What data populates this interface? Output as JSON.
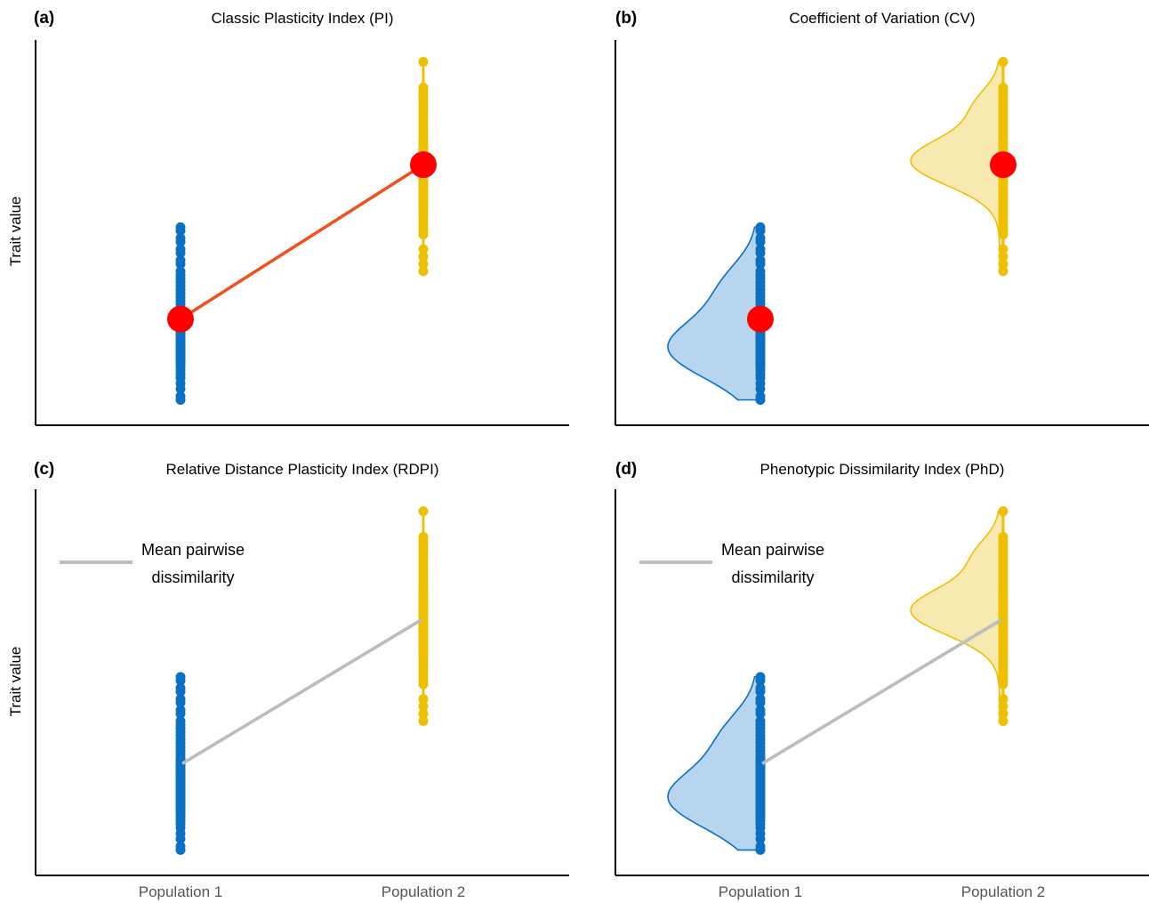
{
  "colors": {
    "population_1": "#0a70c2",
    "population_1_fill": "#b7d5ef",
    "population_2": "#eec000",
    "population_2_fill": "#f8e9b0",
    "mean_marker": "#ff0000",
    "pi_line": "#f0501e",
    "dissimilarity_line": "#bdbdbd",
    "axis": "#000000"
  },
  "chart_data": [
    {
      "type": "scatter",
      "letter": "(a)",
      "title": "Classic Plasticity Index (PI)",
      "ylabel": "Trait value",
      "xlabel": "",
      "x_tick_labels": [],
      "ylim": [
        0,
        10
      ],
      "categories": [
        "Population 1",
        "Population 2"
      ],
      "series": [
        {
          "name": "Population 1",
          "color": "population_1",
          "values": [
            5.1,
            5.0,
            4.8,
            4.7,
            4.5,
            4.4,
            4.2,
            4.1,
            3.9,
            3.8,
            3.7,
            3.6,
            3.5,
            3.4,
            3.3,
            3.2,
            3.1,
            3.0,
            2.9,
            2.85,
            2.8,
            2.75,
            2.7,
            2.65,
            2.6,
            2.55,
            2.5,
            2.45,
            2.4,
            2.35,
            2.3,
            2.25,
            2.2,
            2.15,
            2.1,
            2.05,
            2.0,
            1.95,
            1.9,
            1.85,
            1.8,
            1.75,
            1.7,
            1.65,
            1.6,
            1.55,
            1.5,
            1.45,
            1.4,
            1.35,
            1.3,
            1.2,
            1.1,
            1.0,
            0.85,
            0.7,
            0.5,
            0.4
          ]
        },
        {
          "name": "Population 2",
          "color": "population_2",
          "values": [
            9.6,
            8.9,
            8.8,
            8.7,
            8.6,
            8.5,
            8.4,
            8.3,
            8.2,
            8.1,
            8.0,
            7.9,
            7.8,
            7.7,
            7.6,
            7.5,
            7.4,
            7.35,
            7.3,
            7.25,
            7.2,
            7.15,
            7.1,
            7.05,
            7.0,
            6.95,
            6.9,
            6.85,
            6.8,
            6.75,
            6.7,
            6.65,
            6.6,
            6.55,
            6.5,
            6.45,
            6.4,
            6.35,
            6.3,
            6.25,
            6.2,
            6.15,
            6.1,
            6.05,
            6.0,
            5.95,
            5.9,
            5.85,
            5.8,
            5.7,
            5.6,
            5.5,
            5.4,
            5.3,
            5.2,
            5.1,
            5.0,
            4.9,
            4.5,
            4.3,
            4.1,
            3.9
          ]
        }
      ],
      "means": [
        2.6,
        6.8
      ],
      "show_means": true,
      "show_mean_line": true,
      "show_density": false,
      "show_dissimilarity_line": false
    },
    {
      "type": "scatter",
      "letter": "(b)",
      "title": "Coefficient of Variation (CV)",
      "ylabel": "",
      "xlabel": "",
      "x_tick_labels": [],
      "ylim": [
        0,
        10
      ],
      "categories": [
        "Population 1",
        "Population 2"
      ],
      "series": [
        {
          "name": "Population 1",
          "color": "population_1",
          "values": [
            5.1,
            5.0,
            4.8,
            4.7,
            4.5,
            4.4,
            4.2,
            4.1,
            3.9,
            3.8,
            3.7,
            3.6,
            3.5,
            3.4,
            3.3,
            3.2,
            3.1,
            3.0,
            2.9,
            2.85,
            2.8,
            2.75,
            2.7,
            2.65,
            2.6,
            2.55,
            2.5,
            2.45,
            2.4,
            2.35,
            2.3,
            2.25,
            2.2,
            2.15,
            2.1,
            2.05,
            2.0,
            1.95,
            1.9,
            1.85,
            1.8,
            1.75,
            1.7,
            1.65,
            1.6,
            1.55,
            1.5,
            1.45,
            1.4,
            1.35,
            1.3,
            1.2,
            1.1,
            1.0,
            0.85,
            0.7,
            0.5,
            0.4
          ]
        },
        {
          "name": "Population 2",
          "color": "population_2",
          "values": [
            9.6,
            8.9,
            8.8,
            8.7,
            8.6,
            8.5,
            8.4,
            8.3,
            8.2,
            8.1,
            8.0,
            7.9,
            7.8,
            7.7,
            7.6,
            7.5,
            7.4,
            7.35,
            7.3,
            7.25,
            7.2,
            7.15,
            7.1,
            7.05,
            7.0,
            6.95,
            6.9,
            6.85,
            6.8,
            6.75,
            6.7,
            6.65,
            6.6,
            6.55,
            6.5,
            6.45,
            6.4,
            6.35,
            6.3,
            6.25,
            6.2,
            6.15,
            6.1,
            6.05,
            6.0,
            5.95,
            5.9,
            5.85,
            5.8,
            5.7,
            5.6,
            5.5,
            5.4,
            5.3,
            5.2,
            5.1,
            5.0,
            4.9,
            4.5,
            4.3,
            4.1,
            3.9
          ]
        }
      ],
      "means": [
        2.6,
        6.8
      ],
      "show_means": true,
      "show_mean_line": false,
      "show_density": true,
      "show_dissimilarity_line": false
    },
    {
      "type": "scatter",
      "letter": "(c)",
      "title": "Relative Distance Plasticity Index (RDPI)",
      "ylabel": "Trait value",
      "xlabel": "",
      "x_tick_labels": [
        "Population 1",
        "Population 2"
      ],
      "ylim": [
        0,
        10
      ],
      "categories": [
        "Population 1",
        "Population 2"
      ],
      "series": [
        {
          "name": "Population 1",
          "color": "population_1",
          "values": [
            5.1,
            5.0,
            4.8,
            4.7,
            4.5,
            4.4,
            4.2,
            4.1,
            3.9,
            3.8,
            3.7,
            3.6,
            3.5,
            3.4,
            3.3,
            3.2,
            3.1,
            3.0,
            2.9,
            2.85,
            2.8,
            2.75,
            2.7,
            2.65,
            2.6,
            2.55,
            2.5,
            2.45,
            2.4,
            2.35,
            2.3,
            2.25,
            2.2,
            2.15,
            2.1,
            2.05,
            2.0,
            1.95,
            1.9,
            1.85,
            1.8,
            1.75,
            1.7,
            1.65,
            1.6,
            1.55,
            1.5,
            1.45,
            1.4,
            1.35,
            1.3,
            1.2,
            1.1,
            1.0,
            0.85,
            0.7,
            0.5,
            0.4
          ]
        },
        {
          "name": "Population 2",
          "color": "population_2",
          "values": [
            9.6,
            8.9,
            8.8,
            8.7,
            8.6,
            8.5,
            8.4,
            8.3,
            8.2,
            8.1,
            8.0,
            7.9,
            7.8,
            7.7,
            7.6,
            7.5,
            7.4,
            7.35,
            7.3,
            7.25,
            7.2,
            7.15,
            7.1,
            7.05,
            7.0,
            6.95,
            6.9,
            6.85,
            6.8,
            6.75,
            6.7,
            6.65,
            6.6,
            6.55,
            6.5,
            6.45,
            6.4,
            6.35,
            6.3,
            6.25,
            6.2,
            6.15,
            6.1,
            6.05,
            6.0,
            5.95,
            5.9,
            5.85,
            5.8,
            5.7,
            5.6,
            5.5,
            5.4,
            5.3,
            5.2,
            5.1,
            5.0,
            4.9,
            4.5,
            4.3,
            4.1,
            3.9
          ]
        }
      ],
      "means": [
        2.6,
        6.8
      ],
      "show_means": false,
      "show_mean_line": false,
      "show_density": false,
      "show_dissimilarity_line": true,
      "legend": {
        "label_line1": "Mean pairwise",
        "label_line2": "dissimilarity",
        "position": "top-left"
      }
    },
    {
      "type": "scatter",
      "letter": "(d)",
      "title": "Phenotypic Dissimilarity Index (PhD)",
      "ylabel": "",
      "xlabel": "",
      "x_tick_labels": [
        "Population 1",
        "Population 2"
      ],
      "ylim": [
        0,
        10
      ],
      "categories": [
        "Population 1",
        "Population 2"
      ],
      "series": [
        {
          "name": "Population 1",
          "color": "population_1",
          "values": [
            5.1,
            5.0,
            4.8,
            4.7,
            4.5,
            4.4,
            4.2,
            4.1,
            3.9,
            3.8,
            3.7,
            3.6,
            3.5,
            3.4,
            3.3,
            3.2,
            3.1,
            3.0,
            2.9,
            2.85,
            2.8,
            2.75,
            2.7,
            2.65,
            2.6,
            2.55,
            2.5,
            2.45,
            2.4,
            2.35,
            2.3,
            2.25,
            2.2,
            2.15,
            2.1,
            2.05,
            2.0,
            1.95,
            1.9,
            1.85,
            1.8,
            1.75,
            1.7,
            1.65,
            1.6,
            1.55,
            1.5,
            1.45,
            1.4,
            1.35,
            1.3,
            1.2,
            1.1,
            1.0,
            0.85,
            0.7,
            0.5,
            0.4
          ]
        },
        {
          "name": "Population 2",
          "color": "population_2",
          "values": [
            9.6,
            8.9,
            8.8,
            8.7,
            8.6,
            8.5,
            8.4,
            8.3,
            8.2,
            8.1,
            8.0,
            7.9,
            7.8,
            7.7,
            7.6,
            7.5,
            7.4,
            7.35,
            7.3,
            7.25,
            7.2,
            7.15,
            7.1,
            7.05,
            7.0,
            6.95,
            6.9,
            6.85,
            6.8,
            6.75,
            6.7,
            6.65,
            6.6,
            6.55,
            6.5,
            6.45,
            6.4,
            6.35,
            6.3,
            6.25,
            6.2,
            6.15,
            6.1,
            6.05,
            6.0,
            5.95,
            5.9,
            5.85,
            5.8,
            5.7,
            5.6,
            5.5,
            5.4,
            5.3,
            5.2,
            5.1,
            5.0,
            4.9,
            4.5,
            4.3,
            4.1,
            3.9
          ]
        }
      ],
      "means": [
        2.6,
        6.8
      ],
      "show_means": false,
      "show_mean_line": false,
      "show_density": true,
      "show_dissimilarity_line": true,
      "legend": {
        "label_line1": "Mean pairwise",
        "label_line2": "dissimilarity",
        "position": "top-left"
      }
    }
  ]
}
